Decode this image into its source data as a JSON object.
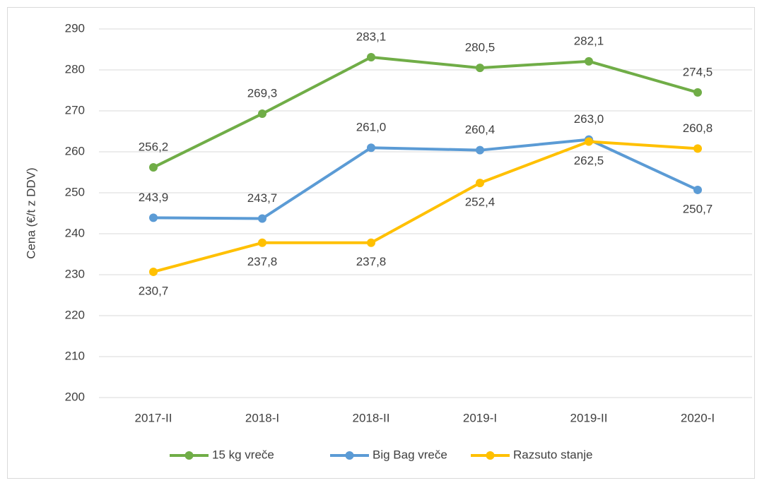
{
  "chart_data": {
    "type": "line",
    "ylabel": "Cena (€/t z DDV)",
    "categories": [
      "2017-II",
      "2018-I",
      "2018-II",
      "2019-I",
      "2019-II",
      "2020-I"
    ],
    "series": [
      {
        "name": "15 kg vreče",
        "color": "#70ad47",
        "values": [
          256.2,
          269.3,
          283.1,
          280.5,
          282.1,
          274.5
        ],
        "value_labels": [
          "256,2",
          "269,3",
          "283,1",
          "280,5",
          "282,1",
          "274,5"
        ]
      },
      {
        "name": "Big Bag vreče",
        "color": "#5b9bd5",
        "values": [
          243.9,
          243.7,
          261.0,
          260.4,
          263.0,
          250.7
        ],
        "value_labels": [
          "243,9",
          "243,7",
          "261,0",
          "260,4",
          "263,0",
          "250,7"
        ]
      },
      {
        "name": "Razsuto stanje",
        "color": "#ffc000",
        "values": [
          230.7,
          237.8,
          237.8,
          252.4,
          262.5,
          260.8
        ],
        "value_labels": [
          "230,7",
          "237,8",
          "237,8",
          "252,4",
          "262,5",
          "260,8"
        ]
      }
    ],
    "ylim": [
      200,
      290
    ],
    "yticks": [
      200,
      210,
      220,
      230,
      240,
      250,
      260,
      270,
      280,
      290
    ],
    "grid": true,
    "legend": "bottom"
  }
}
